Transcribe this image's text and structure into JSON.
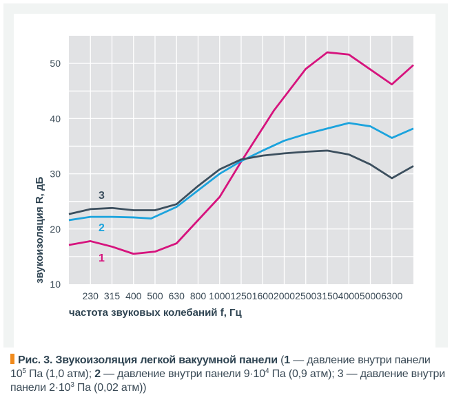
{
  "chart_data": {
    "type": "line",
    "xlabel": "частота звуковых колебаний f, Гц",
    "ylabel": "звукоизоляция R, дБ",
    "categories": [
      "230",
      "315",
      "400",
      "500",
      "630",
      "800",
      "1000",
      "1250",
      "1600",
      "2000",
      "2500",
      "3150",
      "4000",
      "5000",
      "6300"
    ],
    "x_scale": "log",
    "xlim": [
      180,
      8000
    ],
    "ylim": [
      10,
      55
    ],
    "yticks": [
      10,
      20,
      30,
      40,
      50
    ],
    "grid": true,
    "series": [
      {
        "name": "1",
        "color": "#d6137d",
        "x": [
          180,
          230,
          315,
          400,
          500,
          630,
          1000,
          1250,
          1800,
          2500,
          3150,
          4000,
          6300,
          8000
        ],
        "values": [
          17.1,
          17.8,
          16.8,
          15.5,
          15.9,
          17.4,
          25.8,
          32.2,
          41.5,
          49.0,
          52.0,
          51.6,
          46.2,
          49.7
        ]
      },
      {
        "name": "2",
        "color": "#1ba3dd",
        "x": [
          180,
          230,
          315,
          400,
          480,
          630,
          800,
          1000,
          1250,
          1600,
          2000,
          2500,
          3150,
          4000,
          5000,
          6300,
          8000
        ],
        "values": [
          21.6,
          22.2,
          22.2,
          22.1,
          21.9,
          24.0,
          27.0,
          30.0,
          32.3,
          34.2,
          36.0,
          37.2,
          38.2,
          39.2,
          38.6,
          36.5,
          38.2
        ]
      },
      {
        "name": "3",
        "color": "#3c4f5e",
        "x": [
          180,
          230,
          315,
          400,
          500,
          630,
          800,
          1000,
          1250,
          1600,
          2000,
          2500,
          3150,
          4000,
          5000,
          6300,
          8000
        ],
        "values": [
          22.7,
          23.6,
          23.8,
          23.4,
          23.4,
          24.5,
          27.8,
          30.8,
          32.6,
          33.3,
          33.7,
          34.0,
          34.2,
          33.5,
          31.7,
          29.2,
          31.4
        ]
      }
    ]
  },
  "caption": {
    "title": "Рис. 3. Звукоизоляция легкой вакуумной панели",
    "open": " (",
    "n1": "1",
    "t1": " — давление внутри панели 10",
    "e1": "5",
    "t1b": " Па (1,0 атм); ",
    "n2": "2",
    "t2": " — давление внутри панели 9·10",
    "e2": "4",
    "t2b": " Па (0,9 атм); 3 — давление внутри панели 2·10",
    "e3": "3",
    "t3b": " Па (0,02 атм))"
  }
}
